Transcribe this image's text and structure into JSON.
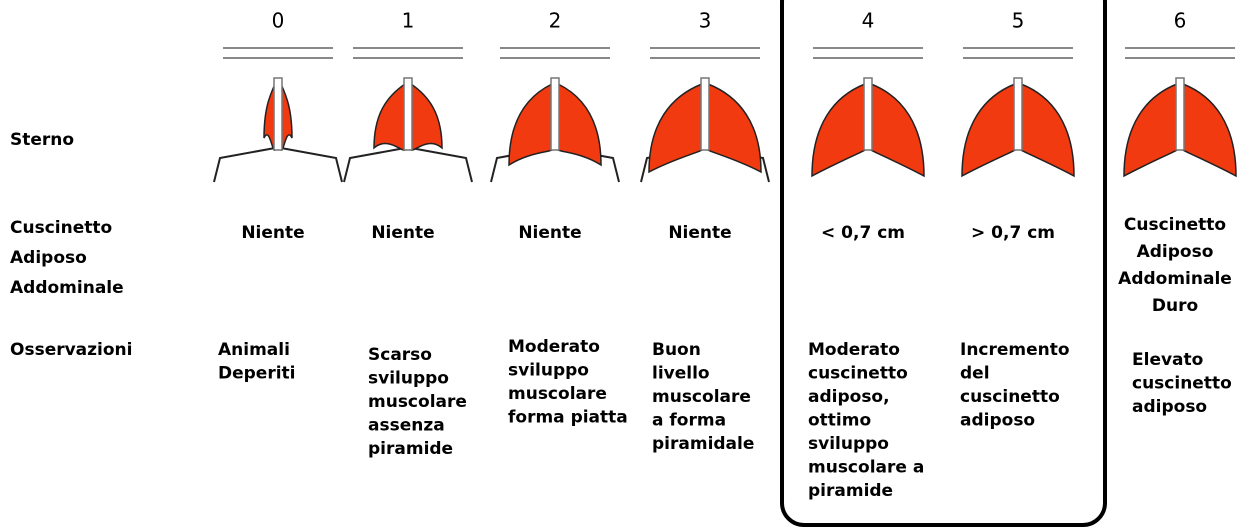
{
  "row_labels": {
    "sterno": "Sterno",
    "fat": [
      "Cuscinetto",
      "Adiposo",
      "Addominale"
    ],
    "notes": "Osservazioni"
  },
  "columns": [
    {
      "score": 0,
      "fat": [
        "Niente"
      ],
      "notes": [
        "Animali",
        "Deperiti"
      ]
    },
    {
      "score": 1,
      "fat": [
        "Niente"
      ],
      "notes": [
        "Scarso",
        "sviluppo",
        "muscolare",
        "assenza",
        "piramide"
      ]
    },
    {
      "score": 2,
      "fat": [
        "Niente"
      ],
      "notes": [
        "Moderato",
        "sviluppo",
        "muscolare",
        "forma piatta"
      ]
    },
    {
      "score": 3,
      "fat": [
        "Niente"
      ],
      "notes": [
        "Buon",
        "livello",
        "muscolare",
        "a forma",
        "piramidale"
      ]
    },
    {
      "score": 4,
      "fat": [
        "< 0,7 cm"
      ],
      "notes": [
        "Moderato",
        "cuscinetto",
        "adiposo,",
        "ottimo",
        "sviluppo",
        "muscolare a",
        "piramide"
      ]
    },
    {
      "score": 5,
      "fat": [
        "> 0,7 cm"
      ],
      "notes": [
        "Incremento",
        "del",
        "cuscinetto",
        "adiposo"
      ]
    },
    {
      "score": 6,
      "fat": [
        "Cuscinetto",
        "Adiposo",
        "Addominale",
        "Duro"
      ],
      "notes": [
        "Elevato",
        "cuscinetto",
        "adiposo"
      ]
    }
  ]
}
